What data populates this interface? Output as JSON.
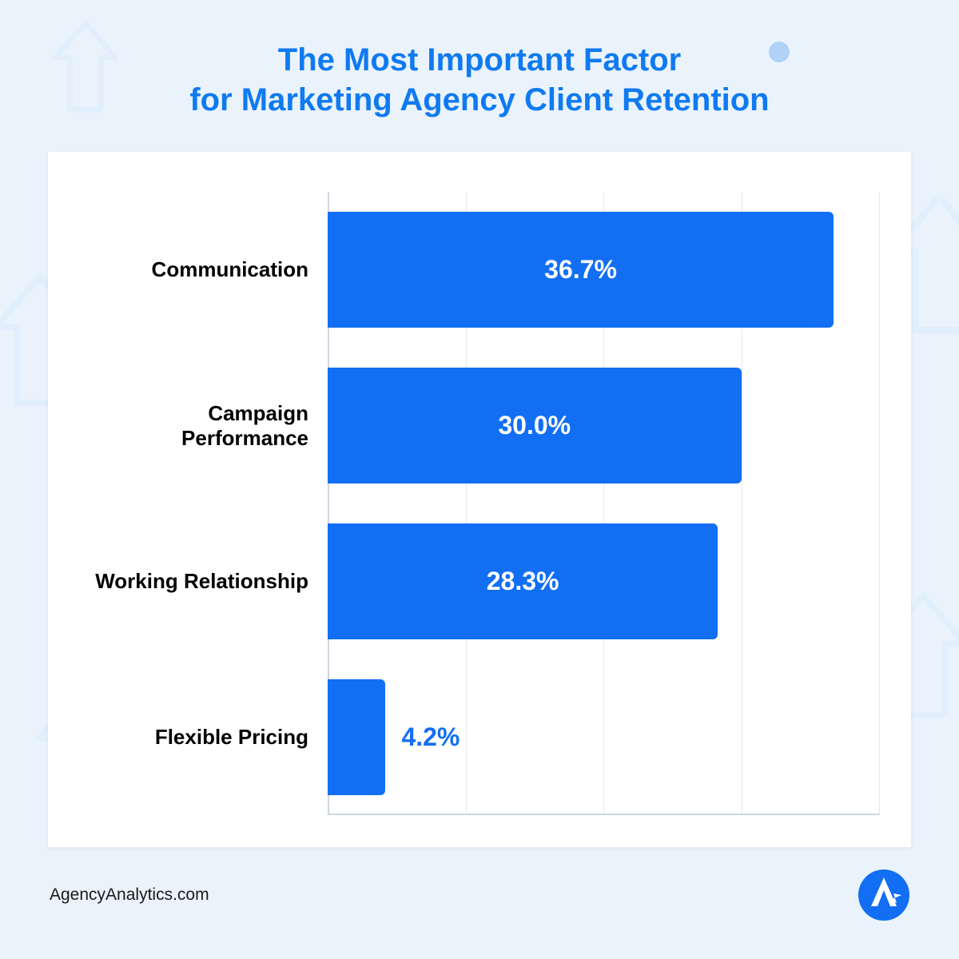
{
  "title_line1": "The Most Important Factor",
  "title_line2": "for Marketing Agency Client Retention",
  "title_color": "#0f7af1",
  "title_fontsize": 40,
  "background_color": "#eaf3fc",
  "card_background": "#ffffff",
  "chart": {
    "type": "horizontal_bar",
    "categories": [
      "Communication",
      "Campaign Performance",
      "Working Relationship",
      "Flexible Pricing"
    ],
    "values": [
      36.7,
      30.0,
      28.3,
      4.2
    ],
    "display_values": [
      "36.7%",
      "30.0%",
      "28.3%",
      "4.2%"
    ],
    "value_position": [
      "inside",
      "inside",
      "inside",
      "outside"
    ],
    "bar_color": "#126ff4",
    "value_color_inside": "#ffffff",
    "value_color_outside": "#126ff4",
    "label_color": "#000000",
    "label_fontsize": 26,
    "value_fontsize": 32,
    "xmax": 40,
    "grid_positions_pct": [
      25,
      50,
      75,
      100
    ],
    "grid_color": "#e2e8ef",
    "axis_color": "#cfd7e0",
    "bar_radius": 6
  },
  "footer": {
    "source": "AgencyAnalytics.com",
    "source_color": "#1a1a1a",
    "logo_bg": "#126ff4",
    "logo_fg": "#ffffff"
  },
  "decorations": {
    "arrow_color": "#dcebfb",
    "dot_color": "#b1d2f7"
  }
}
